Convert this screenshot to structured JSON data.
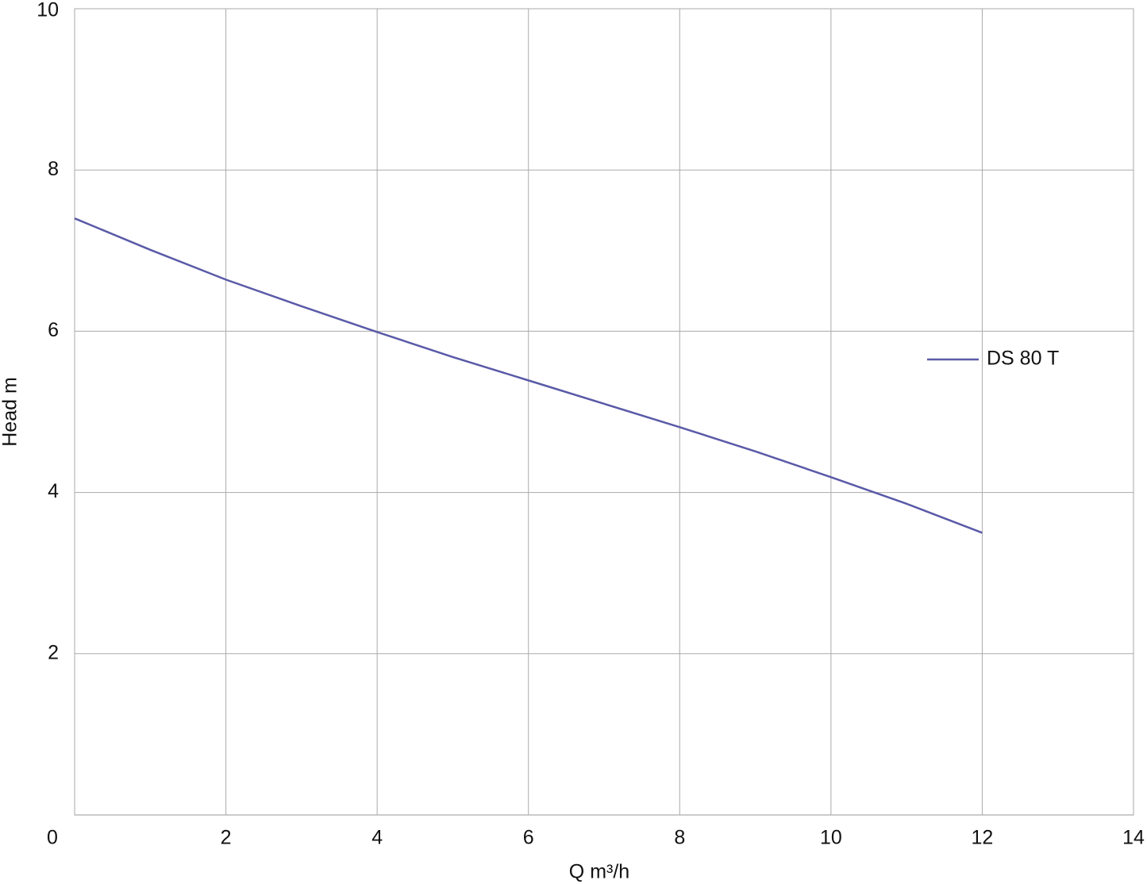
{
  "chart_data": {
    "type": "line",
    "x_label": "Q m³/h",
    "y_label": "Head m",
    "x": [
      0,
      1,
      2,
      3,
      4,
      5,
      6,
      7,
      8,
      9,
      10,
      11,
      12
    ],
    "series": [
      {
        "name": "DS 80 T",
        "color": "#5a5aa8",
        "values": [
          7.4,
          7.01,
          6.64,
          6.31,
          5.99,
          5.68,
          5.39,
          5.1,
          4.81,
          4.51,
          4.19,
          3.86,
          3.5
        ]
      }
    ],
    "xlim": [
      0,
      14
    ],
    "xticks": [
      0,
      2,
      4,
      6,
      8,
      10,
      12,
      14
    ],
    "ylim": [
      0,
      10
    ],
    "yticks": [
      2,
      4,
      6,
      8,
      10
    ],
    "grid": true,
    "legend": "right"
  }
}
